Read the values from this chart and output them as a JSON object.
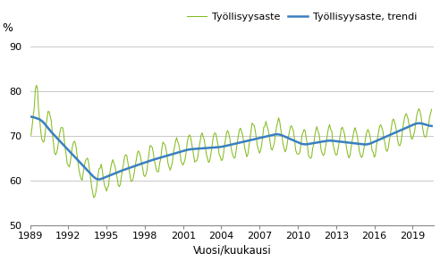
{
  "title": "",
  "ylabel": "%",
  "xlabel": "Vuosi/kuukausi",
  "ylim": [
    50,
    92
  ],
  "yticks": [
    50,
    60,
    70,
    80,
    90
  ],
  "xtick_years": [
    1989,
    1992,
    1995,
    1998,
    2001,
    2004,
    2007,
    2010,
    2013,
    2016,
    2019
  ],
  "line_color": "#85bc20",
  "trend_color": "#3a7fc1",
  "line_label": "Työllisyysaste",
  "trend_label": "Työllisyysaste, trendi",
  "background_color": "#ffffff",
  "grid_color": "#c8c8c8",
  "figsize": [
    4.92,
    2.93
  ],
  "dpi": 100
}
